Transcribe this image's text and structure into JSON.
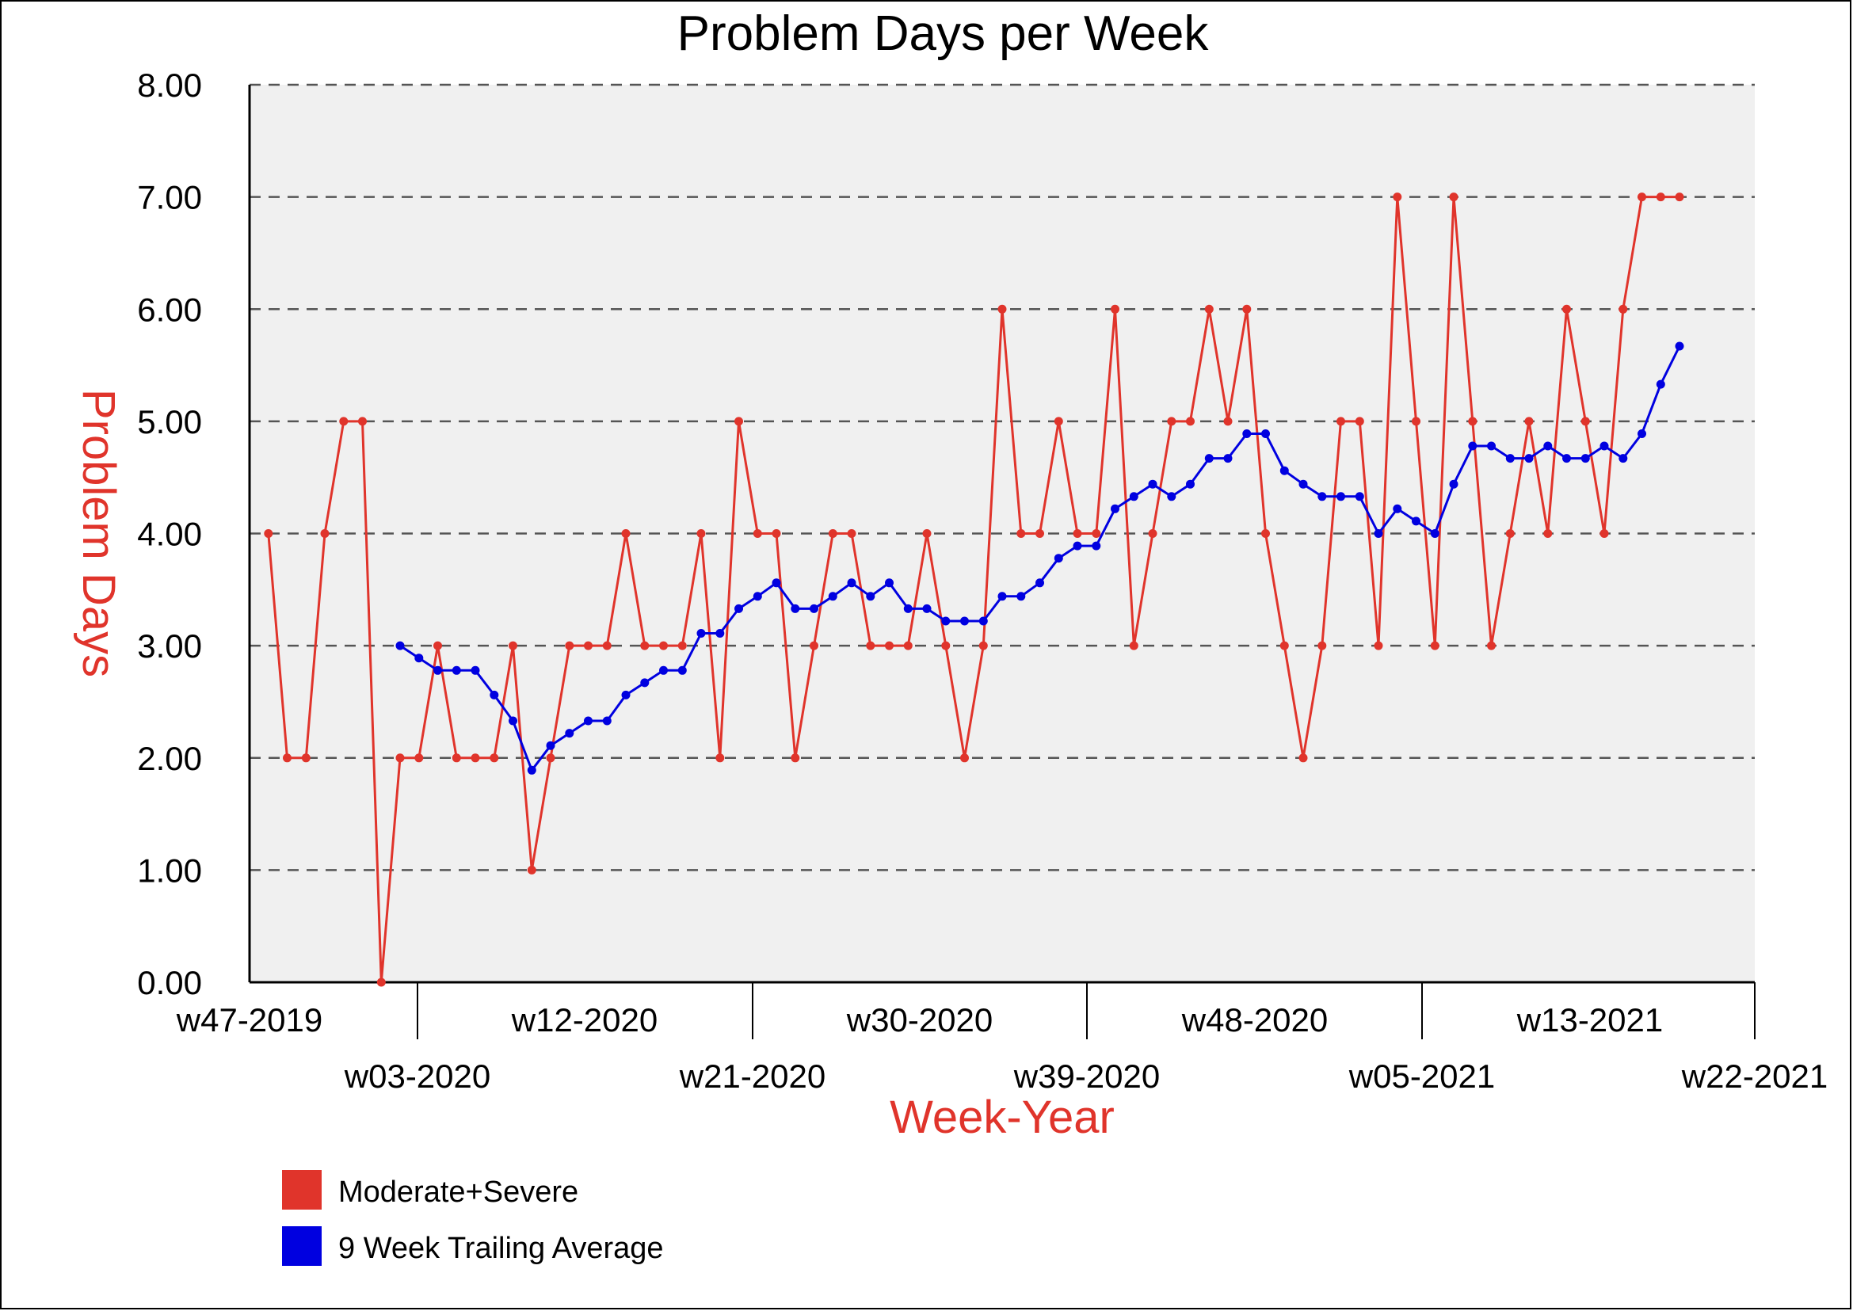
{
  "colors": {
    "series_red": "#e0342b",
    "series_blue": "#0000e0",
    "plot_background": "#f0f0f0",
    "grid": "#555555",
    "axis_label": "#e0342b"
  },
  "chart_data": {
    "type": "line",
    "title": "Problem Days per Week",
    "xlabel": "Week-Year",
    "ylabel": "Problem Days",
    "ylim": [
      0,
      8
    ],
    "yticks": [
      "0.00",
      "1.00",
      "2.00",
      "3.00",
      "4.00",
      "5.00",
      "6.00",
      "7.00",
      "8.00"
    ],
    "xlim_weeks": [
      0,
      80
    ],
    "xticks": [
      {
        "label": "w47-2019",
        "week": 0
      },
      {
        "label": "w03-2020",
        "week": 9
      },
      {
        "label": "w12-2020",
        "week": 18
      },
      {
        "label": "w21-2020",
        "week": 27
      },
      {
        "label": "w30-2020",
        "week": 36
      },
      {
        "label": "w39-2020",
        "week": 45
      },
      {
        "label": "w48-2020",
        "week": 54
      },
      {
        "label": "w05-2021",
        "week": 63
      },
      {
        "label": "w13-2021",
        "week": 72
      },
      {
        "label": "w22-2021",
        "week": 81
      }
    ],
    "grid": "horizontal dashed",
    "legend_placement": "bottom-left",
    "series": [
      {
        "name": "Moderate+Severe",
        "color": "#e0342b",
        "start_week": 1,
        "values": [
          4,
          2,
          2,
          4,
          5,
          5,
          0,
          2,
          2,
          3,
          2,
          2,
          2,
          3,
          1,
          2,
          3,
          3,
          3,
          4,
          3,
          3,
          3,
          4,
          2,
          5,
          4,
          4,
          2,
          3,
          4,
          4,
          3,
          3,
          3,
          4,
          3,
          2,
          3,
          6,
          4,
          4,
          5,
          4,
          4,
          6,
          3,
          4,
          5,
          5,
          6,
          5,
          6,
          4,
          3,
          2,
          3,
          5,
          5,
          3,
          7,
          5,
          3,
          7,
          5,
          3,
          4,
          5,
          4,
          6,
          5,
          4,
          6,
          7,
          7,
          7
        ]
      },
      {
        "name": "9 Week Trailing Average",
        "color": "#0000e0",
        "start_week": 8,
        "values": [
          3.0,
          2.89,
          2.78,
          2.78,
          2.78,
          2.56,
          2.33,
          1.89,
          2.11,
          2.22,
          2.33,
          2.33,
          2.56,
          2.67,
          2.78,
          2.78,
          3.11,
          3.11,
          3.33,
          3.44,
          3.56,
          3.33,
          3.33,
          3.44,
          3.56,
          3.44,
          3.56,
          3.33,
          3.33,
          3.22,
          3.22,
          3.22,
          3.44,
          3.44,
          3.56,
          3.78,
          3.89,
          3.89,
          4.22,
          4.33,
          4.44,
          4.33,
          4.44,
          4.67,
          4.67,
          4.89,
          4.89,
          4.56,
          4.44,
          4.33,
          4.33,
          4.33,
          4.0,
          4.22,
          4.11,
          4.0,
          4.44,
          4.78,
          4.78,
          4.67,
          4.67,
          4.78,
          4.67,
          4.67,
          4.78,
          4.67,
          4.89,
          5.33,
          5.67
        ]
      }
    ]
  }
}
